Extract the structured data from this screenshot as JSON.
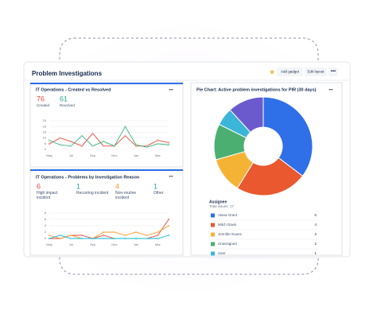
{
  "header": {
    "title": "Problem Investigations",
    "buttons": [
      "Add gadget",
      "Edit layout"
    ]
  },
  "gadgets": [
    {
      "title": "IT Operations - Created vs Resolved",
      "stats": [
        {
          "value": 76,
          "label": "Created",
          "color": "#e5493a"
        },
        {
          "value": 61,
          "label": "Resolved",
          "color": "#2ba68a"
        }
      ],
      "chart": {
        "type": "line",
        "categories": [
          "May",
          null,
          "Jul",
          null,
          "Sep",
          null,
          "Nov",
          null,
          "Jan",
          null,
          "Mar",
          null
        ],
        "ylim": [
          0,
          25
        ],
        "yticks": [
          0,
          5,
          10,
          15,
          20,
          25
        ],
        "grid": true,
        "series": [
          {
            "color": "#e5493a",
            "values": [
              5,
              10,
              7,
              3,
              14,
              3,
              3,
              12,
              3,
              3,
              8,
              6
            ]
          },
          {
            "color": "#36b37e",
            "values": [
              8,
              4,
              3,
              12,
              3,
              7,
              3,
              20,
              4,
              2,
              5,
              4
            ]
          }
        ]
      }
    },
    {
      "title": "IT Operations - Problems by Investigation Reason",
      "stats": [
        {
          "value": 6,
          "label": "High impact incident",
          "color": "#e5493a"
        },
        {
          "value": 1,
          "label": "Recurring incident",
          "color": "#2ba68a"
        },
        {
          "value": 4,
          "label": "Non-routine incident",
          "color": "#ff991f"
        },
        {
          "value": 1,
          "label": "Other",
          "color": "#2ba68a"
        }
      ],
      "chart": {
        "type": "line",
        "categories": [
          "May",
          null,
          "Jul",
          null,
          "Sep",
          null,
          "Nov",
          null,
          "Jan",
          null,
          "Mar",
          null
        ],
        "ylim": [
          0,
          8
        ],
        "yticks": [
          0,
          2,
          4,
          6,
          8
        ],
        "grid": true,
        "series": [
          {
            "color": "#e5493a",
            "values": [
              0,
              0,
              1,
              1,
              0,
              1,
              0,
              0,
              0,
              0,
              1,
              6
            ]
          },
          {
            "color": "#ff991f",
            "values": [
              1,
              0,
              1,
              0,
              0,
              2,
              2,
              1,
              2,
              1,
              2,
              4
            ]
          },
          {
            "color": "#00b8d9",
            "values": [
              0,
              1,
              0,
              0,
              0,
              0,
              0,
              0,
              0,
              0,
              0,
              1
            ]
          }
        ]
      }
    },
    {
      "title": "Pie Chart: Active problem investigations for PIR (30 days)",
      "chart": {
        "type": "pie",
        "legend_title": "Assignee",
        "subtitle": "Total issues: 17",
        "categories": [
          "Alana Grant",
          "Mitch Davis",
          "Jennifer Evans",
          "Unassigned",
          "User",
          null
        ],
        "values": [
          6,
          4,
          2,
          2,
          1,
          2
        ],
        "colors": [
          "#2f6fe8",
          "#e9582f",
          "#f5b335",
          "#4caf72",
          "#3bb5d8",
          "#6a5acd"
        ]
      }
    }
  ]
}
